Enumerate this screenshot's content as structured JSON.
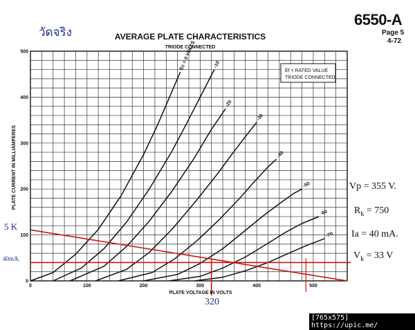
{
  "header": {
    "thai_label": "วัดจริง",
    "tube_type": "6550-A",
    "page": "Page 5",
    "revision": "4-72"
  },
  "chart_data": {
    "type": "line",
    "title": "AVERAGE PLATE CHARACTERISTICS",
    "subtitle": "TRIODE CONNECTED",
    "xlabel": "PLATE VOLTAGE IN VOLTS",
    "ylabel": "PLATE CURRENT IN MILLIAMPERES",
    "xlim": [
      0,
      560
    ],
    "ylim": [
      0,
      500
    ],
    "x_ticks": [
      0,
      100,
      200,
      300,
      400,
      500
    ],
    "y_ticks": [
      0,
      100,
      200,
      300,
      400,
      500
    ],
    "grid": true,
    "legend_box": [
      "Ef = RATED VALUE",
      "TRIODE CONNECTED"
    ],
    "curve_labels": [
      "Ec = 0 VOLTS",
      "-10",
      "-20",
      "-30",
      "-40",
      "-50",
      "-60",
      "-70"
    ],
    "series": [
      {
        "name": "Ec = 0 VOLTS",
        "x": [
          0,
          40,
          80,
          120,
          160,
          200,
          225,
          250,
          265
        ],
        "y": [
          0,
          18,
          58,
          112,
          185,
          275,
          340,
          412,
          455
        ]
      },
      {
        "name": "-10",
        "x": [
          40,
          90,
          130,
          170,
          210,
          250,
          275,
          300,
          325
        ],
        "y": [
          0,
          28,
          70,
          128,
          200,
          282,
          340,
          400,
          460
        ]
      },
      {
        "name": "-20",
        "x": [
          70,
          130,
          170,
          210,
          250,
          290,
          320,
          345
        ],
        "y": [
          0,
          32,
          75,
          130,
          195,
          268,
          330,
          375
        ]
      },
      {
        "name": "-30",
        "x": [
          115,
          170,
          210,
          250,
          290,
          330,
          360,
          385,
          400
        ],
        "y": [
          0,
          25,
          62,
          112,
          170,
          232,
          282,
          322,
          345
        ]
      },
      {
        "name": "-40",
        "x": [
          155,
          215,
          255,
          295,
          335,
          370,
          395,
          420,
          435
        ],
        "y": [
          0,
          18,
          48,
          88,
          135,
          180,
          215,
          248,
          265
        ]
      },
      {
        "name": "-50",
        "x": [
          200,
          260,
          300,
          340,
          380,
          410,
          440,
          465,
          480
        ],
        "y": [
          0,
          14,
          38,
          70,
          110,
          140,
          168,
          190,
          200
        ]
      },
      {
        "name": "-60",
        "x": [
          245,
          300,
          340,
          380,
          420,
          450,
          480,
          510
        ],
        "y": [
          0,
          10,
          28,
          52,
          82,
          105,
          125,
          140
        ]
      },
      {
        "name": "-70",
        "x": [
          290,
          340,
          380,
          420,
          460,
          490,
          520
        ],
        "y": [
          0,
          8,
          22,
          40,
          62,
          78,
          92
        ]
      }
    ],
    "annotations": {
      "load_line": {
        "x": [
          0,
          560
        ],
        "y": [
          111,
          0
        ]
      },
      "ia_line": {
        "y": 40
      },
      "vp_line": {
        "x": 320
      },
      "vmax_line": {
        "x": 487
      },
      "load_line_label": "5 K",
      "ia_axis_label": "40mA.",
      "vp_axis_label": "320",
      "vp_text": "Vp = 355 V.",
      "rk_main": "R",
      "rk_sub": "k",
      "rk_value": " = 750",
      "ia_text": "Ia = 40 mA.",
      "vk_main": "V",
      "vk_sub": "k",
      "vk_value": " = 33 V"
    }
  },
  "watermark": "[765x575] https://upic.me/",
  "colors": {
    "ink": "#111111",
    "annotation": "#cc1111",
    "note_blue": "#1f2f8f"
  }
}
